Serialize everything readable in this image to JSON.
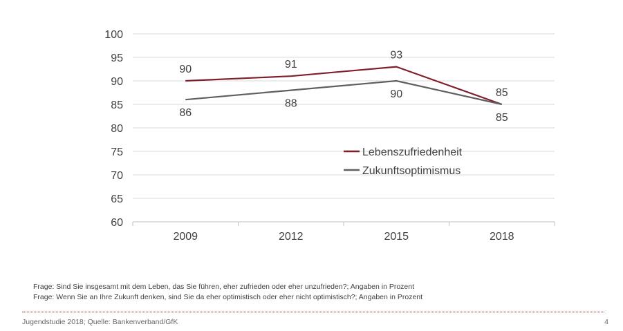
{
  "chart_data": {
    "type": "line",
    "categories": [
      "2009",
      "2012",
      "2015",
      "2018"
    ],
    "series": [
      {
        "name": "Lebenszufriedenheit",
        "values": [
          90,
          91,
          93,
          85
        ],
        "color": "#7f1f2a"
      },
      {
        "name": "Zukunftsoptimismus",
        "values": [
          86,
          88,
          90,
          85
        ],
        "color": "#5f5f5f"
      }
    ],
    "ylim": [
      60,
      100
    ],
    "yticks": [
      60,
      65,
      70,
      75,
      80,
      85,
      90,
      95,
      100
    ],
    "grid": true,
    "legend_position": "center-right",
    "title": "",
    "xlabel": "",
    "ylabel": ""
  },
  "notes": [
    "Frage: Sind Sie insgesamt mit dem Leben, das Sie führen, eher zufrieden oder eher unzufrieden?; Angaben in Prozent",
    "Frage: Wenn Sie an Ihre Zukunft denken, sind Sie da eher optimistisch oder eher nicht optimistisch?; Angaben in Prozent"
  ],
  "footer": {
    "source": "Jugendstudie 2018; Quelle: Bankenverband/GfK",
    "page": "4"
  },
  "colors": {
    "gridline": "#d9d9d9",
    "divider": "#8b1e1e"
  }
}
